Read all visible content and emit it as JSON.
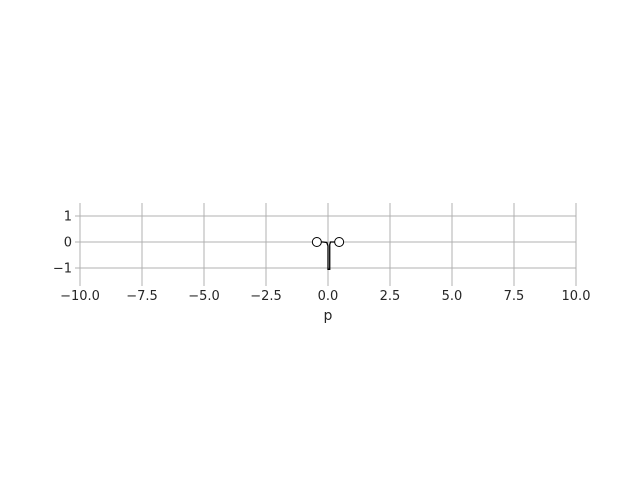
{
  "chart_data": {
    "type": "line",
    "title": "",
    "xlabel": "p",
    "ylabel": "",
    "xlim": [
      -10.0,
      10.0
    ],
    "ylim": [
      -1.5,
      1.5
    ],
    "x_ticks": [
      -10.0,
      -7.5,
      -5.0,
      -2.5,
      0.0,
      2.5,
      5.0,
      7.5,
      10.0
    ],
    "x_tick_labels": [
      "−10.0",
      "−7.5",
      "−5.0",
      "−2.5",
      "0.0",
      "2.5",
      "5.0",
      "7.5",
      "10.0"
    ],
    "y_ticks": [
      1,
      0,
      -1
    ],
    "y_tick_labels": [
      "1",
      "0",
      "−1"
    ],
    "grid": true,
    "series": [
      {
        "values": [
          [
            -0.45,
            0.0
          ],
          [
            -0.2,
            0.0
          ],
          [
            -0.05,
            -0.02
          ],
          [
            0.0,
            -0.15
          ],
          [
            0.0,
            -1.05
          ],
          [
            0.07,
            -1.05
          ],
          [
            0.07,
            -0.1
          ],
          [
            0.1,
            0.0
          ],
          [
            0.45,
            0.0
          ]
        ]
      }
    ],
    "markers": [
      [
        -0.45,
        0.0
      ],
      [
        0.45,
        0.0
      ]
    ]
  }
}
